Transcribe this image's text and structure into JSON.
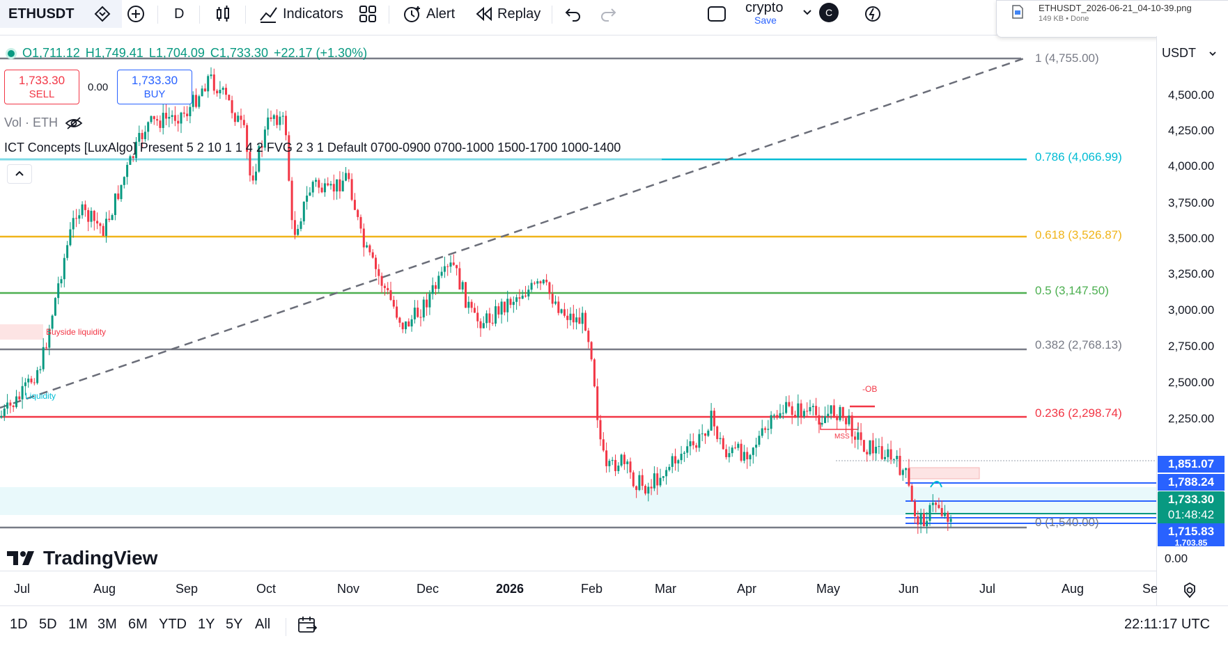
{
  "toolbar": {
    "symbol": "ETHUSDT",
    "interval": "D",
    "indicators_label": "Indicators",
    "alert_label": "Alert",
    "replay_label": "Replay",
    "layout_name": "crypto",
    "save_label": "Save",
    "avatar_letter": "C"
  },
  "download": {
    "filename": "ETHUSDT_2026-06-21_04-10-39.png",
    "info": "149 KB • Done"
  },
  "ohlc": {
    "open": "O1,711.12",
    "high": "H1,749.41",
    "low": "L1,704.09",
    "close": "C1,733.30",
    "change": "+22.17 (+1.30%)"
  },
  "trade": {
    "sell_price": "1,733.30",
    "sell_label": "SELL",
    "spread": "0.00",
    "buy_price": "1,733.30",
    "buy_label": "BUY"
  },
  "legend": {
    "volume": "Vol · ETH",
    "ict": "ICT Concepts [LuxAlgo] Present 5 2 10 1 1 4 2 FVG 2 3 1 Default 0700-0900 0700-1000 1500-1700 1000-1400"
  },
  "currency": "USDT",
  "price_axis": [
    "4,500.00",
    "4,250.00",
    "4,000.00",
    "3,750.00",
    "3,500.00",
    "3,250.00",
    "3,000.00",
    "2,750.00",
    "2,500.00",
    "2,250.00",
    "0.00"
  ],
  "price_boxes": {
    "p1": "1,851.07",
    "p2": "1,788.24",
    "p3": "1,733.30",
    "countdown": "01:48:42",
    "p4": "1,715.83",
    "p5": "1,703.85"
  },
  "fib_levels": [
    {
      "label": "1 (4,755.00)",
      "color": "#787b86"
    },
    {
      "label": "0.786 (4,066.99)",
      "color": "#00bcd4"
    },
    {
      "label": "0.618 (3,526.87)",
      "color": "#f0b41a"
    },
    {
      "label": "0.5 (3,147.50)",
      "color": "#4caf50"
    },
    {
      "label": "0.382 (2,768.13)",
      "color": "#787b86"
    },
    {
      "label": "0.236 (2,298.74)",
      "color": "#f23645"
    },
    {
      "label": "0 (1,540.00)",
      "color": "#787b86"
    }
  ],
  "annotations": {
    "buyside": "Buyside liquidity",
    "liquidity": "Liquidity",
    "ob": "-OB",
    "mss": "MSS"
  },
  "time_axis": [
    "Jul",
    "Aug",
    "Sep",
    "Oct",
    "Nov",
    "Dec",
    "2026",
    "Feb",
    "Mar",
    "Apr",
    "May",
    "Jun",
    "Jul",
    "Aug",
    "Se"
  ],
  "ranges": [
    "1D",
    "5D",
    "1M",
    "3M",
    "6M",
    "YTD",
    "1Y",
    "5Y",
    "All"
  ],
  "clock": "22:11:17 UTC",
  "brand": "TradingView",
  "colors": {
    "up": "#089981",
    "down": "#f23645",
    "accent": "#2962ff"
  }
}
